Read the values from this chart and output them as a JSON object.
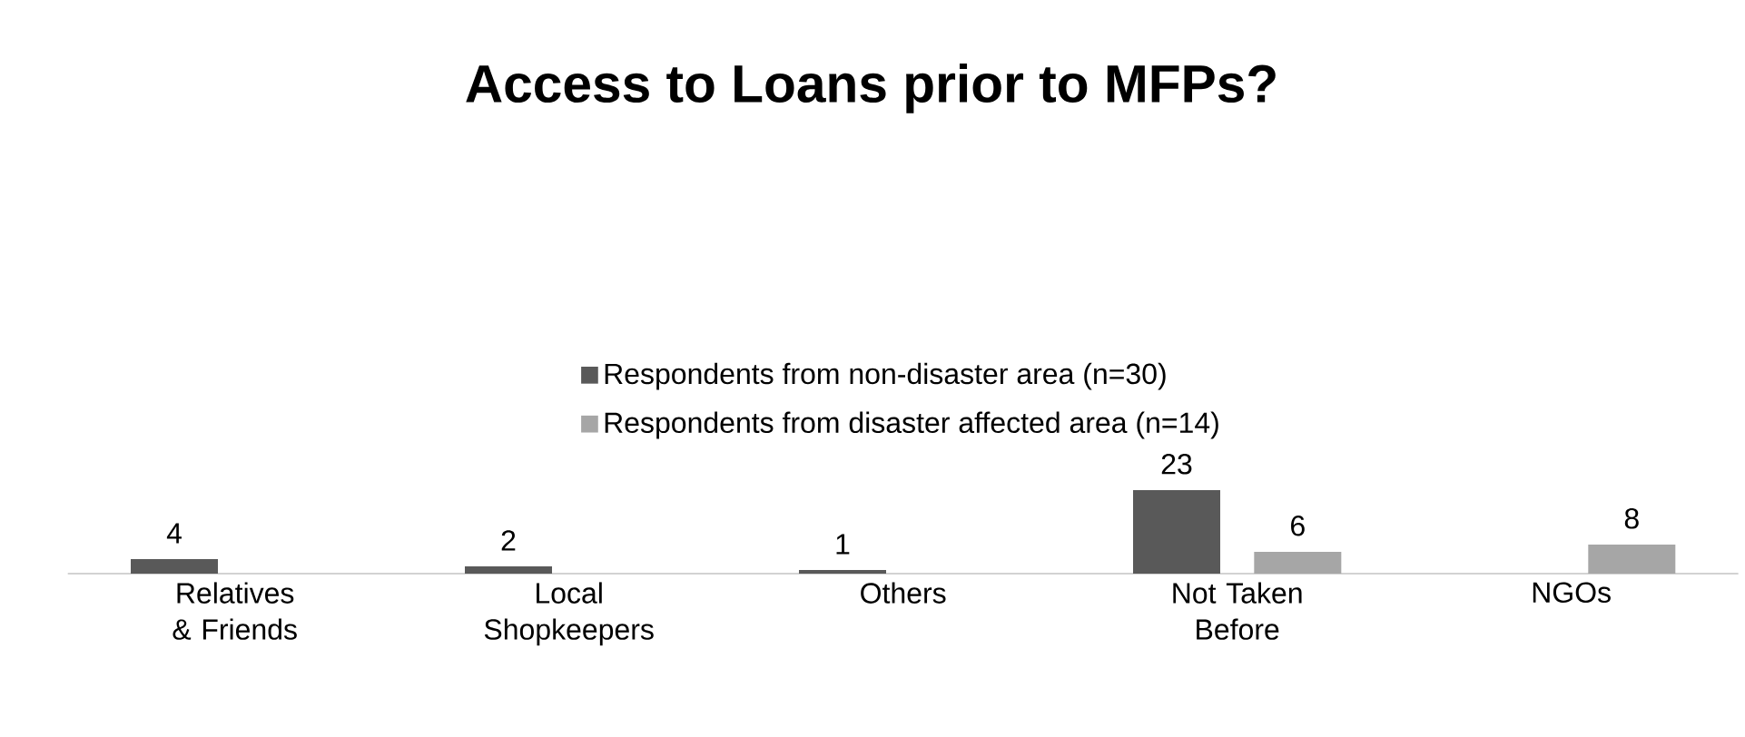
{
  "chart_data": {
    "type": "bar",
    "title": "Access to Loans prior to MFPs?",
    "categories": [
      "Relatives & Friends",
      "Local Shopkeepers",
      "Others",
      "Not Taken Before",
      "NGOs"
    ],
    "series": [
      {
        "name": "Respondents from non-disaster area (n=30)",
        "color": "#595959",
        "values": [
          4,
          2,
          1,
          23,
          null
        ]
      },
      {
        "name": "Respondents from disaster affected area (n=14)",
        "color": "#a6a6a6",
        "values": [
          null,
          null,
          null,
          6,
          8
        ]
      }
    ],
    "data_labels": true,
    "legend": "top"
  }
}
